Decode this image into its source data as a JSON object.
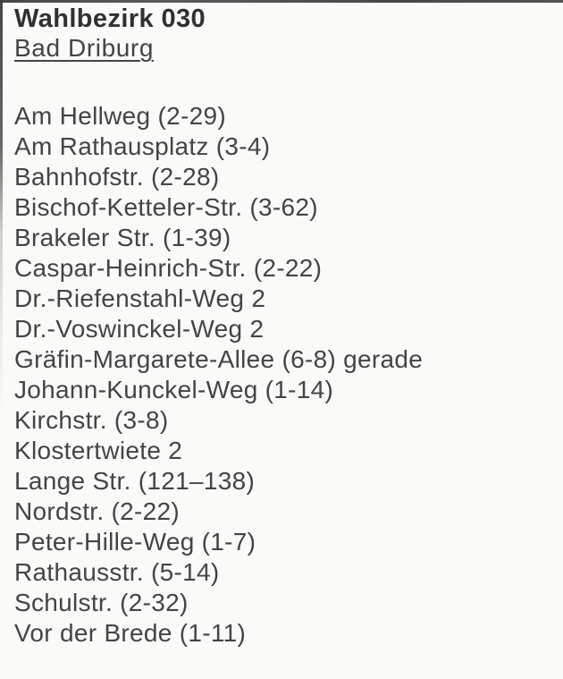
{
  "header": {
    "title": "Wahlbezirk 030",
    "subtitle": "Bad Driburg"
  },
  "streets": [
    "Am Hellweg (2-29)",
    "Am Rathausplatz (3-4)",
    "Bahnhofstr. (2-28)",
    "Bischof-Ketteler-Str. (3-62)",
    "Brakeler Str. (1-39)",
    "Caspar-Heinrich-Str. (2-22)",
    "Dr.-Riefenstahl-Weg 2",
    "Dr.-Voswinckel-Weg 2",
    "Gräfin-Margarete-Allee (6-8) gerade",
    "Johann-Kunckel-Weg (1-14)",
    "Kirchstr. (3-8)",
    "Klostertwiete 2",
    "Lange Str. (121–138)",
    "Nordstr. (2-22)",
    "Peter-Hille-Weg (1-7)",
    "Rathausstr. (5-14)",
    "Schulstr. (2-32)",
    "Vor der Brede (1-11)"
  ],
  "colors": {
    "background": "#fafaf8",
    "text": "#444444",
    "title": "#303030",
    "scan_border": "#484848"
  }
}
